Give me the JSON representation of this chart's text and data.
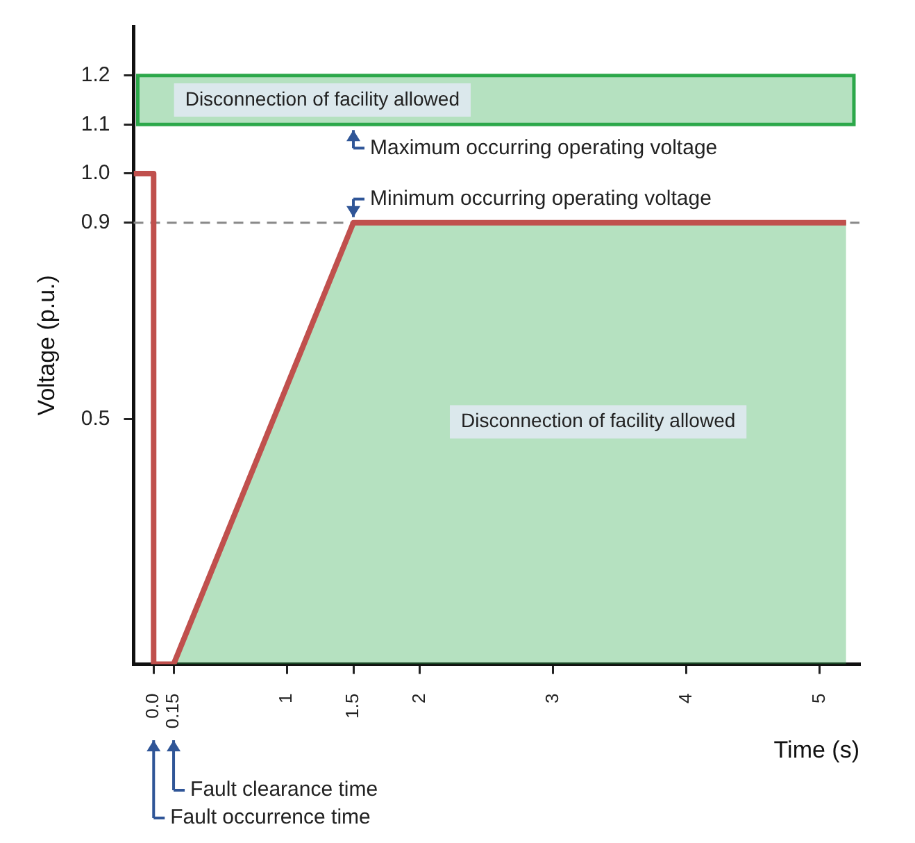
{
  "chart_data": {
    "type": "line",
    "xlabel": "Time (s)",
    "ylabel": "Voltage (p.u.)",
    "xlim": [
      -0.15,
      5.3
    ],
    "ylim": [
      0,
      1.3
    ],
    "xticks": [
      {
        "value": 0,
        "label": "0.0"
      },
      0.15,
      1,
      1.5,
      2,
      3,
      4,
      5
    ],
    "yticks": [
      0.5,
      0.9,
      {
        "value": 1,
        "label": "1.0"
      },
      1.1,
      1.2
    ],
    "series": [
      {
        "type": "area",
        "color": "#2ca84a",
        "x": [
          0.15,
          1.5,
          5.2
        ],
        "values": [
          0,
          0.9,
          0.9
        ]
      },
      {
        "type": "line",
        "color": "#c0504d",
        "x": [
          -0.15,
          0,
          0,
          0.15,
          1.5,
          5.2
        ],
        "values": [
          1,
          1,
          0,
          0,
          0.9,
          0.9
        ]
      }
    ],
    "bands": [
      {
        "axis": "y",
        "from": 1.1,
        "to": 1.2,
        "label": "Disconnection of facility allowed",
        "color": "#2ca84a"
      }
    ],
    "ref_lines": [
      {
        "axis": "y",
        "value": 0.9,
        "line_style": "dashed",
        "color": "#888888"
      }
    ],
    "annotations": [
      {
        "text": "Maximum occurring operating voltage",
        "x": 1.5,
        "y": 1.1
      },
      {
        "text": "Minimum occurring operating voltage",
        "x": 1.5,
        "y": 0.9
      },
      "Fault clearance time",
      "Fault occurrence time",
      "Disconnection of facility allowed"
    ],
    "grid": false,
    "legend": false,
    "marker": "none",
    "line_style": "solid"
  }
}
